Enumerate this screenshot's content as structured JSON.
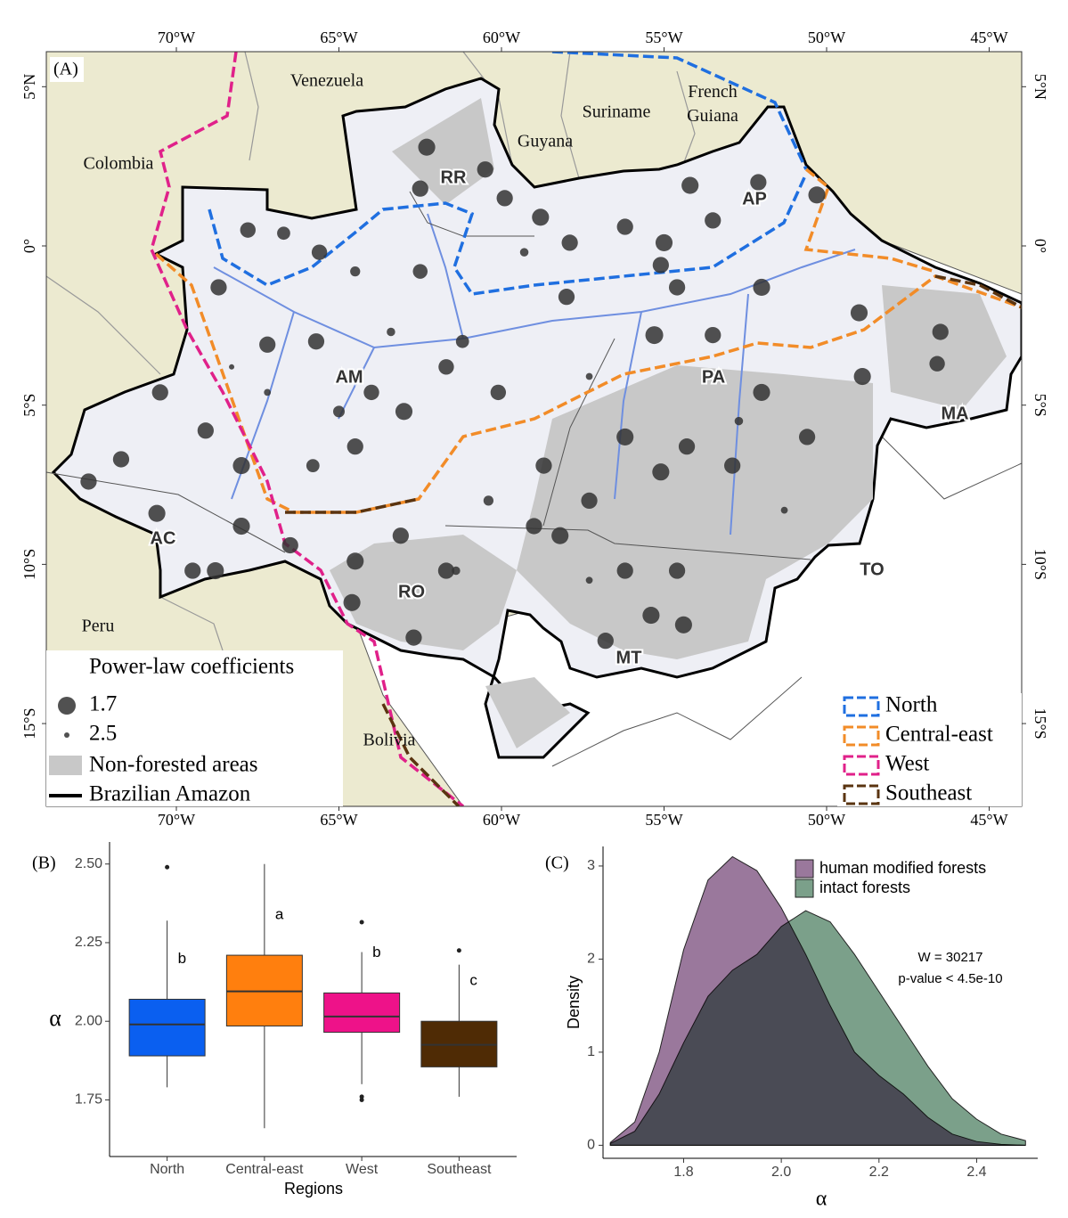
{
  "chart_data": [
    {
      "type": "map",
      "panel": "(A)",
      "xlim": [
        -74,
        -44
      ],
      "ylim": [
        -17.6,
        6.1
      ],
      "xticks": [
        {
          "value": -70,
          "label": "70°W"
        },
        {
          "value": -65,
          "label": "65°W"
        },
        {
          "value": -60,
          "label": "60°W"
        },
        {
          "value": -55,
          "label": "55°W"
        },
        {
          "value": -50,
          "label": "50°W"
        },
        {
          "value": -45,
          "label": "45°W"
        }
      ],
      "yticks": [
        {
          "value": 5,
          "label": "5°N"
        },
        {
          "value": 0,
          "label": "0°"
        },
        {
          "value": -5,
          "label": "5°S"
        },
        {
          "value": -10,
          "label": "10°S"
        },
        {
          "value": -15,
          "label": "15°S"
        }
      ],
      "countries": [
        "Venezuela",
        "Guyana",
        "Suriname",
        "French Guiana",
        "Colombia",
        "Peru",
        "Bolivia"
      ],
      "states": [
        "RR",
        "AP",
        "AM",
        "PA",
        "MA",
        "AC",
        "RO",
        "TO",
        "MT"
      ],
      "points": {
        "color": "#333333",
        "x": [
          -62.3,
          -60.5,
          -62.5,
          -59.9,
          -58.8,
          -57.9,
          -56.2,
          -55.0,
          -54.2,
          -53.5,
          -52.1,
          -50.3,
          -55.1,
          -58.0,
          -54.6,
          -52.0,
          -55.3,
          -53.5,
          -49.0,
          -48.9,
          -46.5,
          -46.6,
          -52.0,
          -50.6,
          -56.2,
          -54.3,
          -52.9,
          -55.1,
          -58.7,
          -57.3,
          -59.0,
          -58.2,
          -56.2,
          -54.6,
          -55.4,
          -54.4,
          -56.8,
          -61.7,
          -63.1,
          -64.5,
          -64.6,
          -62.7,
          -66.5,
          -68.0,
          -69.5,
          -68.8,
          -71.7,
          -70.6,
          -72.7,
          -70.5,
          -69.1,
          -68.0,
          -67.2,
          -68.7,
          -67.8,
          -65.6,
          -66.7,
          -65.7,
          -64.5,
          -63.0,
          -64.0,
          -65.0,
          -61.7,
          -61.2,
          -60.1,
          -62.5,
          -64.5,
          -67.2,
          -65.8,
          -63.4,
          -59.3,
          -57.3,
          -52.7,
          -57.3,
          -51.3,
          -60.4,
          -68.3,
          -61.4
        ],
        "y": [
          3.1,
          2.4,
          1.8,
          1.5,
          0.9,
          0.1,
          0.6,
          0.1,
          1.9,
          0.8,
          2.0,
          1.6,
          -0.6,
          -1.6,
          -1.3,
          -1.3,
          -2.8,
          -2.8,
          -2.1,
          -4.1,
          -2.7,
          -3.7,
          -4.6,
          -6.0,
          -6.0,
          -6.3,
          -6.9,
          -7.1,
          -6.9,
          -8.0,
          -8.8,
          -9.1,
          -10.2,
          -10.2,
          -11.6,
          -11.9,
          -12.4,
          -10.2,
          -9.1,
          -9.9,
          -11.2,
          -12.3,
          -9.4,
          -8.8,
          -10.2,
          -10.2,
          -6.7,
          -8.4,
          -7.4,
          -4.6,
          -5.8,
          -6.9,
          -3.1,
          -1.3,
          0.5,
          -0.2,
          0.4,
          -3.0,
          -6.3,
          -5.2,
          -4.6,
          -5.2,
          -3.8,
          -3.0,
          -4.6,
          -0.8,
          -0.8,
          -4.6,
          -6.9,
          -2.7,
          -0.2,
          -4.1,
          -5.5,
          -10.5,
          -8.3,
          -8.0,
          -3.8,
          -10.2
        ],
        "size": [
          1.75,
          1.8,
          1.8,
          1.8,
          1.75,
          1.8,
          1.8,
          1.75,
          1.75,
          1.8,
          1.8,
          1.75,
          1.8,
          1.8,
          1.8,
          1.75,
          1.7,
          1.8,
          1.75,
          1.75,
          1.8,
          1.85,
          1.75,
          1.8,
          1.75,
          1.8,
          1.8,
          1.75,
          1.8,
          1.8,
          1.8,
          1.75,
          1.8,
          1.8,
          1.75,
          1.75,
          1.8,
          1.8,
          1.8,
          1.75,
          1.75,
          1.8,
          1.8,
          1.75,
          1.8,
          1.75,
          1.8,
          1.75,
          1.8,
          1.8,
          1.8,
          1.75,
          1.8,
          1.8,
          1.85,
          1.85,
          2.0,
          1.8,
          1.8,
          1.75,
          1.85,
          2.1,
          1.85,
          2.0,
          1.85,
          1.9,
          2.2,
          2.4,
          2.0,
          2.3,
          2.3,
          2.4,
          2.3,
          2.4,
          2.4,
          2.2,
          2.5,
          2.3
        ]
      },
      "size_legend": {
        "title": "Power-law coefficients",
        "values": [
          1.7,
          2.5
        ]
      },
      "layers": [
        {
          "name": "Non-forested areas",
          "color": "#c8c8c8"
        },
        {
          "name": "Brazilian Amazon",
          "color": "#000000"
        }
      ],
      "regions": [
        {
          "name": "North",
          "color": "#1f6fe0"
        },
        {
          "name": "Central-east",
          "color": "#f28c28"
        },
        {
          "name": "West",
          "color": "#e0218a"
        },
        {
          "name": "Southeast",
          "color": "#5a3410"
        }
      ]
    },
    {
      "type": "box",
      "panel": "(B)",
      "x_label": "Regions",
      "y_label": "α",
      "categories": [
        "North",
        "Central-east",
        "West",
        "Southeast"
      ],
      "colors": [
        "#0a5ff0",
        "#ff7f0e",
        "#ee1289",
        "#4f2b05"
      ],
      "ylim": [
        1.57,
        2.57
      ],
      "yticks": [
        1.75,
        {
          "value": 2,
          "label": "2.00"
        },
        2.25,
        {
          "value": 2.5,
          "label": "2.50"
        }
      ],
      "boxes": [
        {
          "min": 1.79,
          "q1": 1.89,
          "median": 1.99,
          "q3": 2.07,
          "max": 2.32,
          "outliers": [
            2.49
          ],
          "letter": "b"
        },
        {
          "min": 1.66,
          "q1": 1.985,
          "median": 2.095,
          "q3": 2.21,
          "max": 2.5,
          "outliers": [],
          "letter": "a"
        },
        {
          "min": 1.8,
          "q1": 1.965,
          "median": 2.015,
          "q3": 2.09,
          "max": 2.22,
          "outliers": [
            2.315,
            1.76,
            1.75
          ],
          "letter": "b"
        },
        {
          "min": 1.76,
          "q1": 1.855,
          "median": 1.925,
          "q3": 2.0,
          "max": 2.18,
          "outliers": [
            2.225
          ],
          "letter": "c"
        }
      ]
    },
    {
      "type": "density",
      "panel": "(C)",
      "x_label": "α",
      "y_label": "Density",
      "xlim": [
        1.635,
        2.525
      ],
      "ylim": [
        -0.14,
        3.21
      ],
      "xticks": [
        1.8,
        {
          "value": 2,
          "label": "2.0"
        },
        2.2,
        2.4
      ],
      "yticks": [
        0,
        1,
        2,
        3
      ],
      "x": [
        1.65,
        1.7,
        1.75,
        1.8,
        1.85,
        1.9,
        1.95,
        2.0,
        2.05,
        2.1,
        2.15,
        2.2,
        2.25,
        2.3,
        2.35,
        2.4,
        2.45,
        2.5
      ],
      "series": [
        {
          "name": "human modified forests",
          "color": "#9a789c",
          "values": [
            0.03,
            0.25,
            1.0,
            2.1,
            2.85,
            3.1,
            2.95,
            2.55,
            2.05,
            1.5,
            1.0,
            0.75,
            0.55,
            0.3,
            0.12,
            0.04,
            0.01,
            0
          ]
        },
        {
          "name": "intact forests",
          "color": "#7ba08a",
          "values": [
            0.02,
            0.15,
            0.55,
            1.1,
            1.6,
            1.88,
            2.05,
            2.35,
            2.52,
            2.4,
            2.05,
            1.65,
            1.25,
            0.85,
            0.5,
            0.28,
            0.12,
            0.05
          ]
        }
      ],
      "annotations": [
        "W = 30217",
        "p-value < 4.5e-10"
      ]
    }
  ]
}
